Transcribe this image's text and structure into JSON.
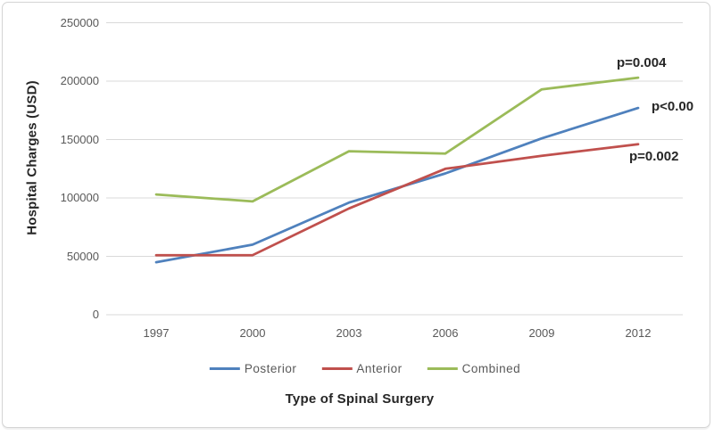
{
  "chart_data": {
    "type": "line",
    "categories": [
      "1997",
      "2000",
      "2003",
      "2006",
      "2009",
      "2012"
    ],
    "series": [
      {
        "name": "Posterior",
        "color": "#4F81BD",
        "values": [
          45000,
          60000,
          96000,
          121000,
          151000,
          177000
        ]
      },
      {
        "name": "Anterior",
        "color": "#C0504D",
        "values": [
          51000,
          51000,
          91000,
          125000,
          136000,
          146000
        ]
      },
      {
        "name": "Combined",
        "color": "#9BBB59",
        "values": [
          103000,
          97000,
          140000,
          138000,
          193000,
          203000
        ]
      }
    ],
    "xlabel": "Type of Spinal Surgery",
    "ylabel": "Hospital Charges  (USD)",
    "ylim": [
      0,
      250000
    ],
    "ytick_interval": 50000,
    "yticks": [
      "250000",
      "200000",
      "150000",
      "100000",
      "50000",
      "0"
    ],
    "grid": "horizontal",
    "gridline_color": "#D9D9D9",
    "legend_position": "bottom",
    "annotations": [
      {
        "text": "p=0.004",
        "series": "Combined"
      },
      {
        "text": "p<0.00",
        "series": "Posterior"
      },
      {
        "text": "p=0.002",
        "series": "Anterior"
      }
    ]
  }
}
